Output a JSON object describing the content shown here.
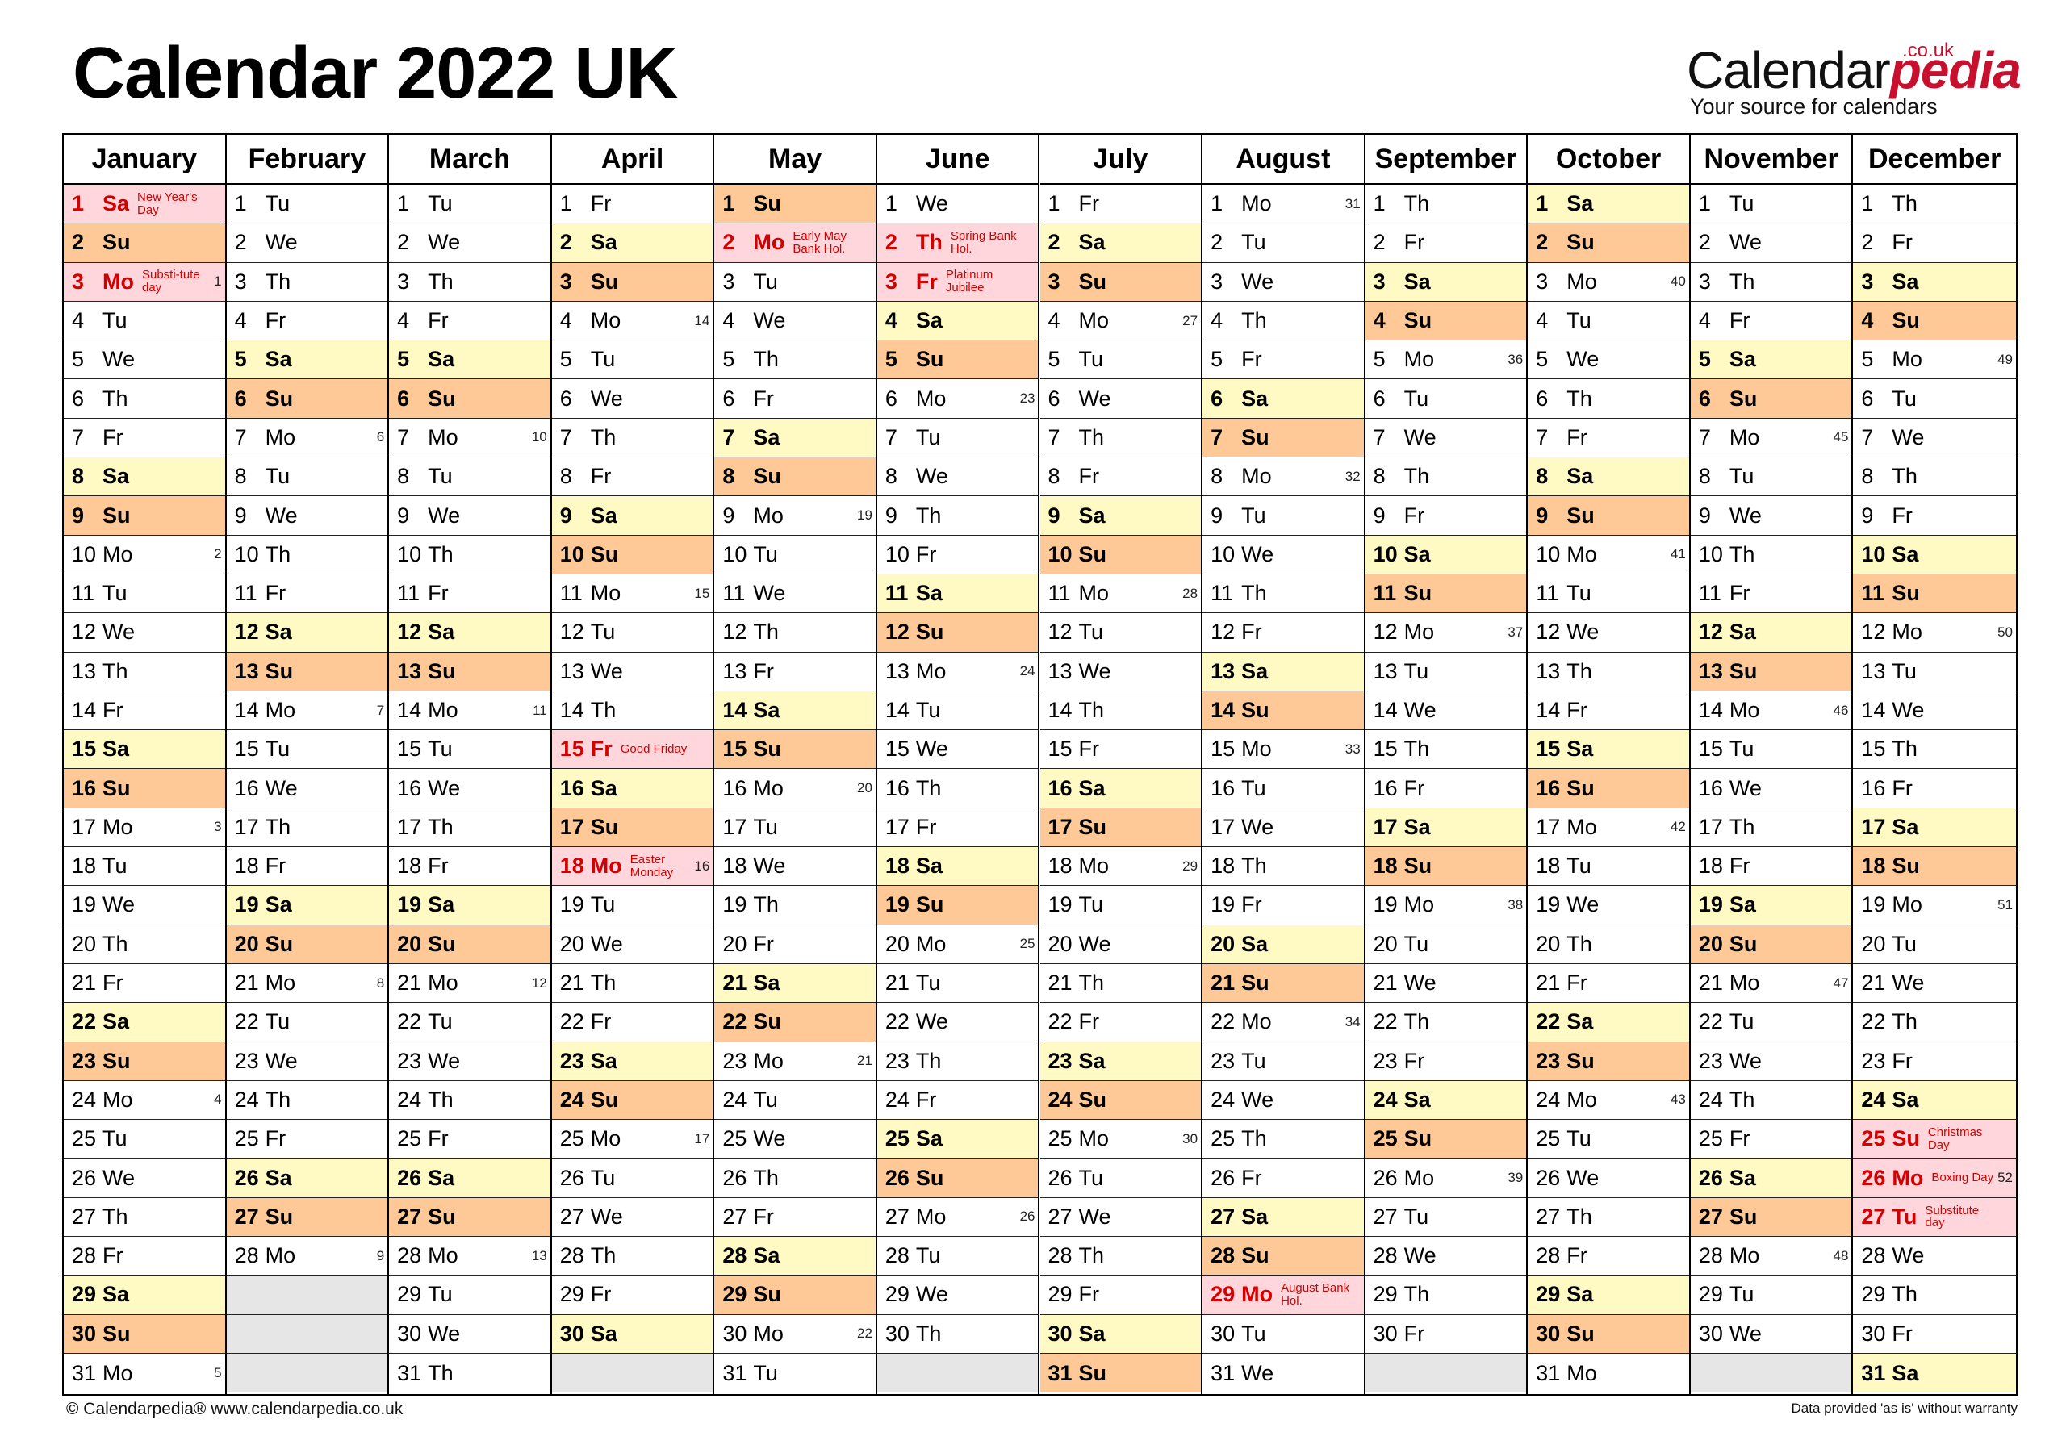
{
  "title": "Calendar 2022 UK",
  "logo": {
    "brand_a": "Calendar",
    "brand_b": "pedia",
    "couk": ".co.uk",
    "tagline": "Your source for calendars"
  },
  "footer": {
    "left": "© Calendarpedia®   www.calendarpedia.co.uk",
    "right": "Data provided 'as is' without warranty"
  },
  "colors": {
    "saturday": "#fff9c4",
    "sunday": "#ffc997",
    "holiday": "#ffd6dc",
    "holiday_text": "#d40000",
    "empty": "#e6e6e6"
  },
  "months": [
    {
      "name": "January",
      "first_dow": 6,
      "days": 31,
      "holidays": {
        "1": "New Year's Day",
        "3": "Substi-tute day"
      },
      "weeks": {
        "3": "1",
        "10": "2",
        "17": "3",
        "24": "4",
        "31": "5"
      }
    },
    {
      "name": "February",
      "first_dow": 2,
      "days": 28,
      "holidays": {},
      "weeks": {
        "7": "6",
        "14": "7",
        "21": "8",
        "28": "9"
      }
    },
    {
      "name": "March",
      "first_dow": 2,
      "days": 31,
      "holidays": {},
      "weeks": {
        "7": "10",
        "14": "11",
        "21": "12",
        "28": "13"
      }
    },
    {
      "name": "April",
      "first_dow": 5,
      "days": 30,
      "holidays": {
        "15": "Good Friday",
        "18": "Easter Monday"
      },
      "weeks": {
        "4": "14",
        "11": "15",
        "18": "16",
        "25": "17"
      }
    },
    {
      "name": "May",
      "first_dow": 0,
      "days": 31,
      "holidays": {
        "2": "Early May Bank Hol."
      },
      "weeks": {
        "9": "19",
        "16": "20",
        "23": "21",
        "30": "22"
      }
    },
    {
      "name": "June",
      "first_dow": 3,
      "days": 30,
      "holidays": {
        "2": "Spring Bank Hol.",
        "3": "Platinum Jubilee"
      },
      "weeks": {
        "6": "23",
        "13": "24",
        "20": "25",
        "27": "26"
      }
    },
    {
      "name": "July",
      "first_dow": 5,
      "days": 31,
      "holidays": {},
      "weeks": {
        "4": "27",
        "11": "28",
        "18": "29",
        "25": "30"
      }
    },
    {
      "name": "August",
      "first_dow": 1,
      "days": 31,
      "holidays": {
        "29": "August Bank Hol."
      },
      "weeks": {
        "1": "31",
        "8": "32",
        "15": "33",
        "22": "34"
      }
    },
    {
      "name": "September",
      "first_dow": 4,
      "days": 30,
      "holidays": {},
      "weeks": {
        "5": "36",
        "12": "37",
        "19": "38",
        "26": "39"
      }
    },
    {
      "name": "October",
      "first_dow": 6,
      "days": 31,
      "holidays": {},
      "weeks": {
        "3": "40",
        "10": "41",
        "17": "42",
        "24": "43"
      }
    },
    {
      "name": "November",
      "first_dow": 2,
      "days": 30,
      "holidays": {},
      "weeks": {
        "7": "45",
        "14": "46",
        "21": "47",
        "28": "48"
      }
    },
    {
      "name": "December",
      "first_dow": 4,
      "days": 31,
      "holidays": {
        "25": "Christmas Day",
        "26": "Boxing Day",
        "27": "Substitute day"
      },
      "weeks": {
        "5": "49",
        "12": "50",
        "19": "51",
        "26": "52"
      }
    }
  ],
  "weekday_abbr": [
    "Su",
    "Mo",
    "Tu",
    "We",
    "Th",
    "Fr",
    "Sa"
  ]
}
